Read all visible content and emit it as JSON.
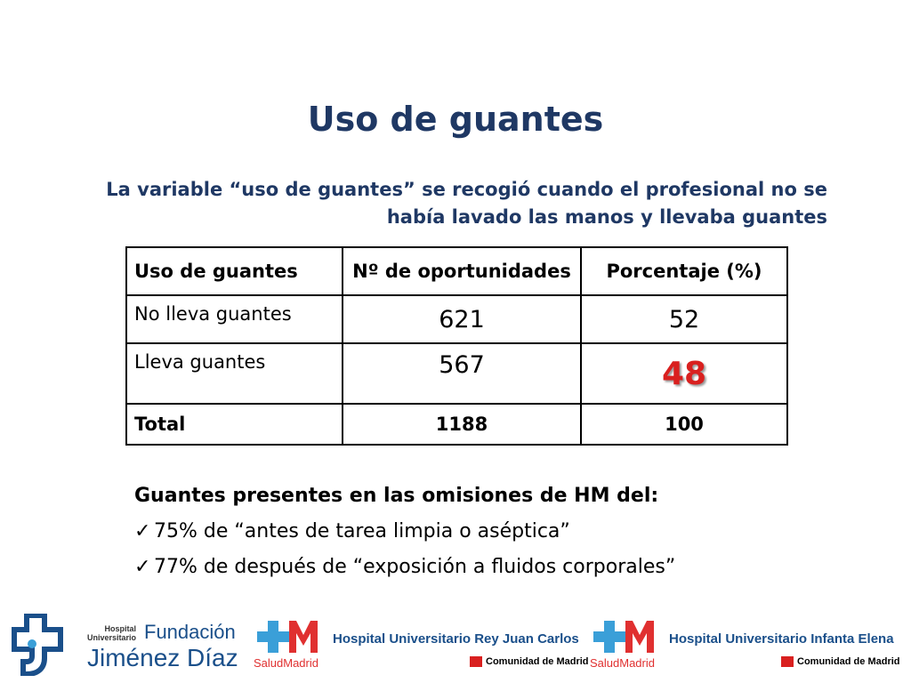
{
  "title": "Uso de guantes",
  "subtitle": {
    "line1": "La variable “uso de guantes” se recogió cuando el profesional no se",
    "line2": "había lavado las manos y llevaba guantes"
  },
  "table": {
    "headers": [
      "Uso de guantes",
      "Nº de oportunidades",
      "Porcentaje (%)"
    ],
    "rows": [
      {
        "label": "No lleva guantes",
        "count": "621",
        "pct": "52"
      },
      {
        "label": "Lleva guantes",
        "count": "567",
        "pct": "48"
      }
    ],
    "total": {
      "label": "Total",
      "count": "1188",
      "pct": "100"
    },
    "highlight_color": "#d9201f"
  },
  "bullets": {
    "heading": "Guantes presentes en las omisiones de HM del:",
    "check_icon": "checkmark-icon",
    "items": [
      "75% de “antes de tarea limpia o aséptica”",
      "77% de después de “exposición a fluidos corporales”"
    ]
  },
  "logos": {
    "fjd": {
      "small1": "Hospital",
      "small2": "Universitario",
      "fundacion": "Fundación",
      "jd": "Jiménez Díaz"
    },
    "sm_label": "SaludMadrid",
    "hosp1": "Hospital Universitario Rey Juan Carlos",
    "hosp2": "Hospital Universitario Infanta Elena",
    "cm": "Comunidad de Madrid",
    "title_color": "#1f3864"
  }
}
